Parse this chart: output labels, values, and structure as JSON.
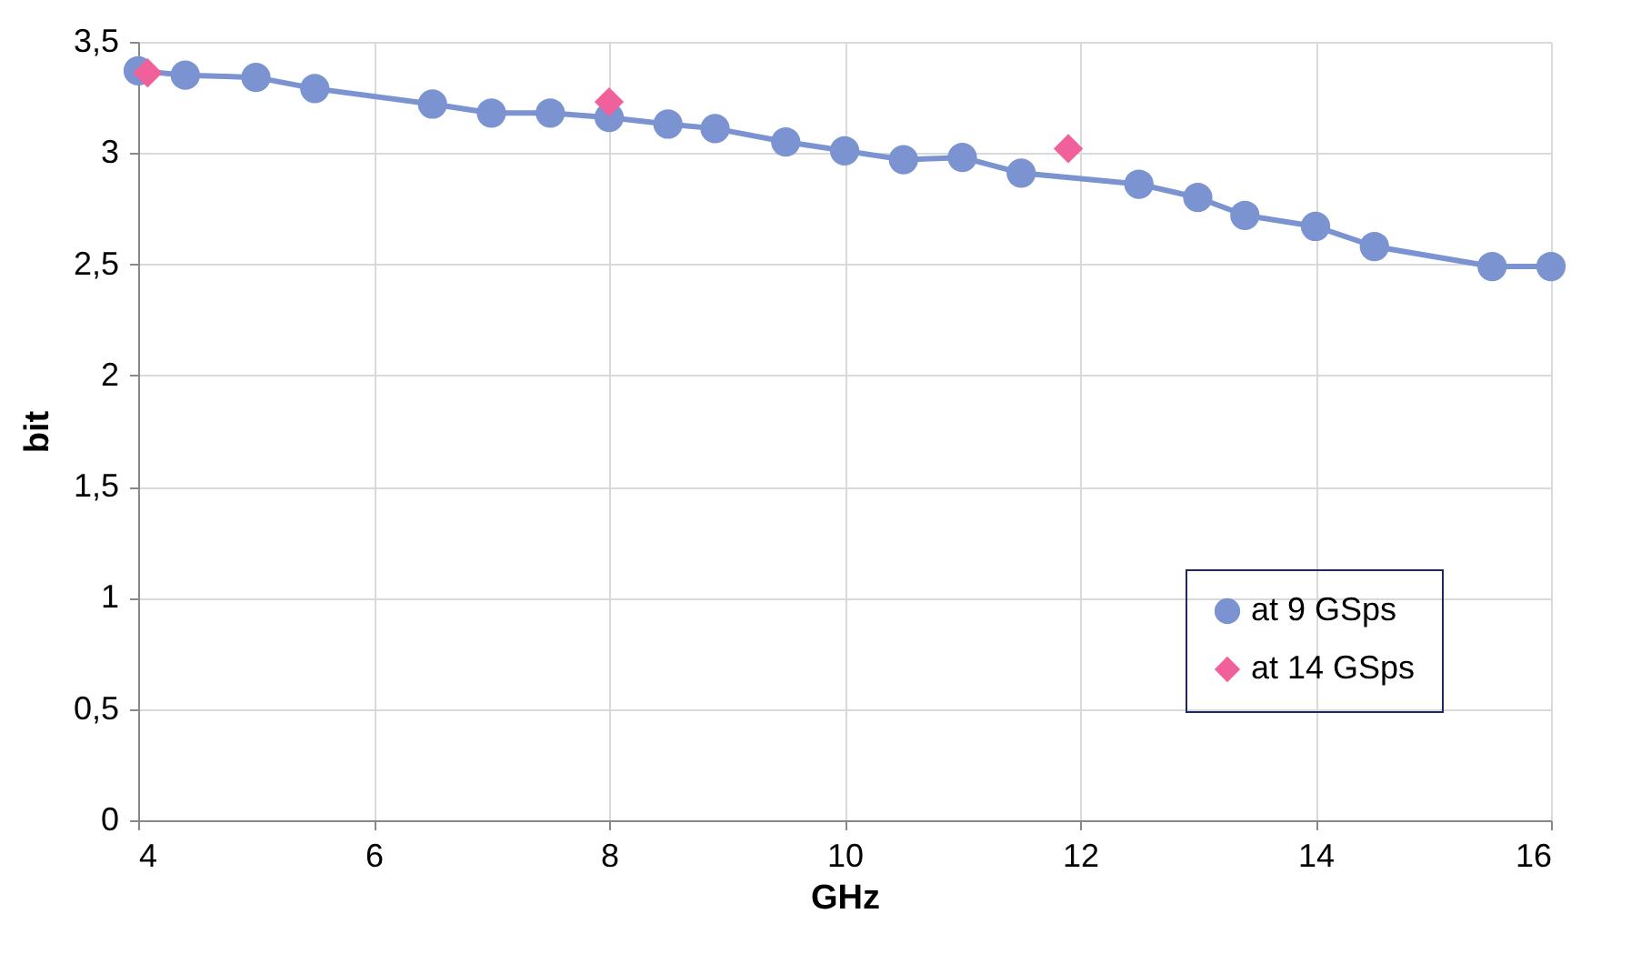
{
  "chart_data": {
    "type": "line",
    "xlabel": "GHz",
    "ylabel": "bit",
    "marker": "circle",
    "line_style": "solid",
    "grid": true,
    "legend": "bottom right",
    "xlim": [
      4,
      16
    ],
    "xticks": [
      4,
      6,
      8,
      10,
      12,
      14,
      16
    ],
    "ylim": [
      0,
      3.5
    ],
    "yticks": [
      0,
      {
        "value": 0.5,
        "label": "0,5"
      },
      1,
      {
        "value": 1.5,
        "label": "1,5"
      },
      2,
      {
        "value": 2.5,
        "label": "2,5"
      },
      3,
      {
        "value": 3.5,
        "label": "3,5"
      }
    ],
    "series": [
      {
        "name": "at 9 GSps",
        "color": "#7b93d1",
        "x": [
          4.0,
          4.4,
          5.0,
          5.5,
          6.5,
          7.0,
          7.5,
          8.0,
          8.5,
          8.9,
          9.5,
          10.0,
          10.5,
          11.0,
          11.5,
          12.5,
          13.0,
          13.4,
          14.0,
          14.5,
          15.5,
          16.0
        ],
        "values": [
          3.37,
          3.35,
          3.34,
          3.29,
          3.22,
          3.18,
          3.18,
          3.16,
          3.13,
          3.11,
          3.05,
          3.01,
          2.97,
          2.98,
          2.91,
          2.86,
          2.8,
          2.72,
          2.67,
          2.58,
          2.49,
          2.49
        ]
      },
      {
        "name": "at 14 GSps",
        "type": "scatter",
        "marker": "diamond",
        "color": "#f0609a",
        "x": [
          4.08,
          8.0,
          11.9
        ],
        "values": [
          3.36,
          3.23,
          3.02
        ]
      }
    ]
  }
}
